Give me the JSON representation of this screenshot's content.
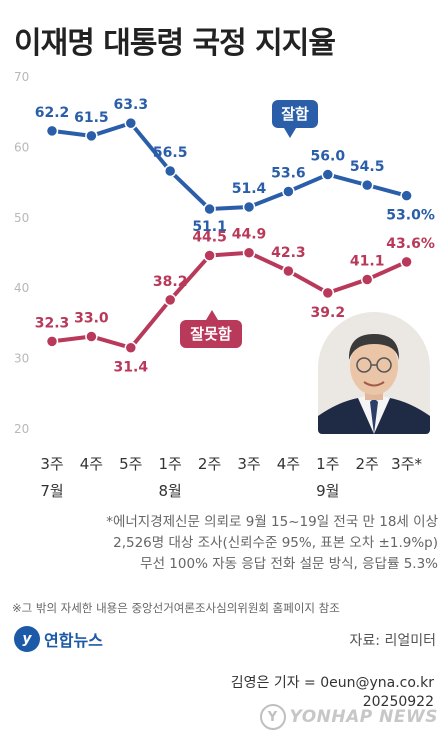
{
  "title": "이재명 대통령 국정 지지율",
  "chart_data": {
    "type": "line",
    "ylim": [
      20,
      70
    ],
    "yticks": [
      20,
      30,
      40,
      50,
      60,
      70
    ],
    "grid": false,
    "categories": [
      "3주 7월",
      "4주",
      "5주",
      "1주 8월",
      "2주",
      "3주",
      "4주",
      "1주 9월",
      "2주",
      "3주*"
    ],
    "x_week_labels": [
      "3주",
      "4주",
      "5주",
      "1주",
      "2주",
      "3주",
      "4주",
      "1주",
      "2주",
      "3주*"
    ],
    "x_month_labels": [
      "7월",
      "",
      "",
      "8월",
      "",
      "",
      "",
      "9월",
      "",
      ""
    ],
    "series": [
      {
        "name": "잘함",
        "color": "#2a5ea8",
        "values": [
          62.2,
          61.5,
          63.3,
          56.5,
          51.1,
          51.4,
          53.6,
          56.0,
          54.5,
          53.0
        ],
        "labels": [
          "62.2",
          "61.5",
          "63.3",
          "56.5",
          "51.1",
          "51.4",
          "53.6",
          "56.0",
          "54.5",
          "53.0%"
        ]
      },
      {
        "name": "잘못함",
        "color": "#b8395a",
        "values": [
          32.3,
          33.0,
          31.4,
          38.2,
          44.5,
          44.9,
          42.3,
          39.2,
          41.1,
          43.6
        ],
        "labels": [
          "32.3",
          "33.0",
          "31.4",
          "38.2",
          "44.5",
          "44.9",
          "42.3",
          "39.2",
          "41.1",
          "43.6%"
        ]
      }
    ]
  },
  "notes": [
    "*에너지경제신문 의뢰로 9월 15~19일 전국 만 18세 이상",
    "2,526명 대상 조사(신뢰수준 95%, 표본 오차 ±1.9%p)",
    "무선 100% 자동 응답 전화 설문 방식, 응답률 5.3%"
  ],
  "footnote": "※그 밖의 자세한 내용은 중앙선거여론조사심의위원회 홈페이지 참조",
  "logo": {
    "mark": "y",
    "text": "연합뉴스"
  },
  "source": "자료: 리얼미터",
  "credit_line1": "김영은 기자 = 0eun@yna.co.kr",
  "credit_line2": "20250922",
  "watermark": "YONHAP NEWS"
}
